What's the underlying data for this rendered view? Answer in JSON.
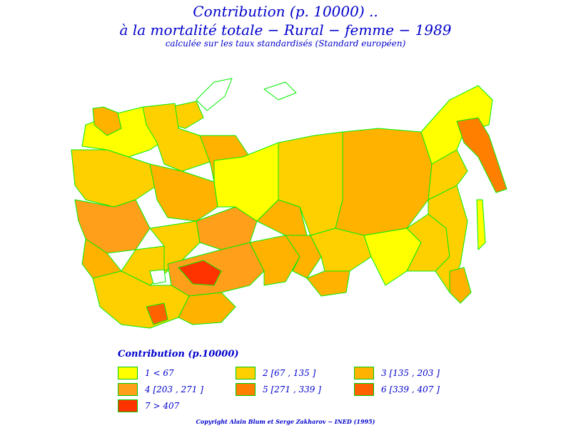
{
  "title": {
    "line1": "Contribution (p. 10000) ..",
    "line2": "à la mortalité totale − Rural − femme − 1989",
    "line3": "calculée sur les taux standardisés (Standard européen)"
  },
  "legend": {
    "title": "Contribution (p.10000)",
    "items": [
      {
        "label": "1  <  67",
        "color": "#ffff00"
      },
      {
        "label": "2 [67 ,  135 ]",
        "color": "#ffd000"
      },
      {
        "label": "3 [135 ,  203 ]",
        "color": "#ffb200"
      },
      {
        "label": "4 [203 ,  271 ]",
        "color": "#ff9f1a"
      },
      {
        "label": "5 [271 ,  339 ]",
        "color": "#ff7f00"
      },
      {
        "label": "6 [339 ,  407 ]",
        "color": "#ff6000"
      },
      {
        "label": "7  >  407",
        "color": "#ff3300"
      }
    ]
  },
  "colors": {
    "border": "#00ee00",
    "text": "#0000cc"
  },
  "copyright": "Copyright Alain Blum et Serge Zakharov − INED (1995)"
}
